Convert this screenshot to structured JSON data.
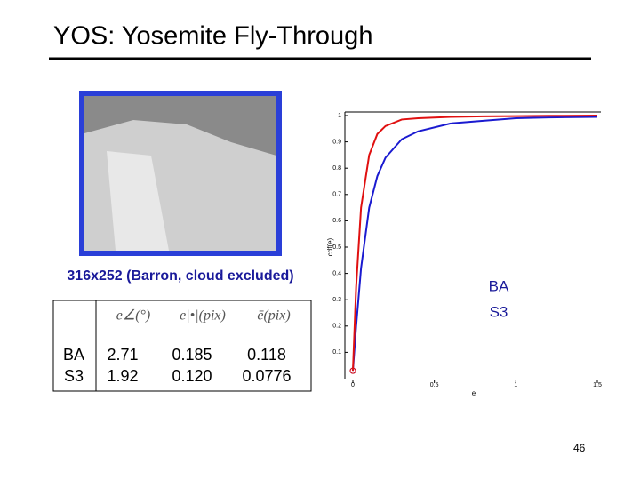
{
  "header": {
    "title": "YOS: Yosemite Fly-Through"
  },
  "image": {
    "caption": "316x252 (Barron, cloud excluded)"
  },
  "table": {
    "header": [
      "e∠(°)",
      "e|•|(pix)",
      "ē(pix)"
    ],
    "rows": [
      [
        "BA",
        "2.71",
        "0.185",
        "0.118"
      ],
      [
        "S3",
        "1.92",
        "0.120",
        "0.0776"
      ]
    ]
  },
  "chart_data": {
    "type": "line",
    "xlabel": "e",
    "ylabel": "cdf(e)",
    "x": [
      0,
      0.02,
      0.05,
      0.1,
      0.15,
      0.2,
      0.3,
      0.4,
      0.6,
      0.8,
      1,
      1.2,
      1.5
    ],
    "series": [
      {
        "name": "BA",
        "color": "#1a1ad0",
        "values": [
          0.03,
          0.2,
          0.42,
          0.65,
          0.77,
          0.84,
          0.91,
          0.94,
          0.97,
          0.98,
          0.99,
          0.993,
          0.995
        ]
      },
      {
        "name": "S3",
        "color": "#e01010",
        "values": [
          0.03,
          0.35,
          0.65,
          0.85,
          0.93,
          0.96,
          0.985,
          0.99,
          0.995,
          0.997,
          0.998,
          0.999,
          1
        ]
      }
    ],
    "xlim": [
      0,
      1.5
    ],
    "xticks": [
      0,
      0.5,
      1,
      1.5
    ],
    "ylim": [
      0,
      1
    ],
    "yticks": [
      0.1,
      0.2,
      0.3,
      0.4,
      0.5,
      0.6,
      0.7,
      0.8,
      0.9,
      1
    ]
  },
  "footer": {
    "page": "46"
  }
}
